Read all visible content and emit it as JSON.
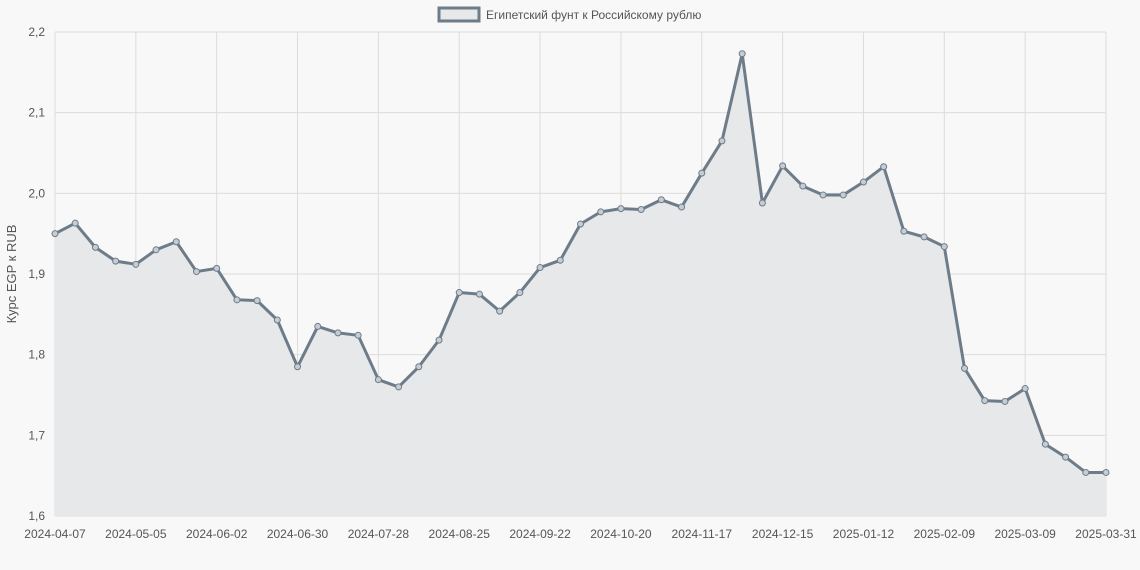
{
  "chart_data": {
    "type": "line",
    "area_fill": true,
    "legend": {
      "position": "top-center"
    },
    "series": [
      {
        "name": "Египетский фунт к Российскому рублю",
        "values": [
          1.95,
          1.963,
          1.933,
          1.916,
          1.912,
          1.93,
          1.94,
          1.903,
          1.907,
          1.868,
          1.867,
          1.843,
          1.785,
          1.835,
          1.827,
          1.824,
          1.769,
          1.76,
          1.785,
          1.818,
          1.877,
          1.875,
          1.854,
          1.877,
          1.908,
          1.917,
          1.962,
          1.977,
          1.981,
          1.98,
          1.992,
          1.983,
          2.025,
          2.065,
          2.173,
          1.988,
          2.034,
          2.009,
          1.998,
          1.998,
          2.014,
          2.033,
          1.953,
          1.946,
          1.934,
          1.783,
          1.743,
          1.742,
          1.758,
          1.689,
          1.673,
          1.654,
          1.654
        ]
      }
    ],
    "x_tick_labels": [
      "2024-04-07",
      "2024-05-05",
      "2024-06-02",
      "2024-06-30",
      "2024-07-28",
      "2024-08-25",
      "2024-09-22",
      "2024-10-20",
      "2024-11-17",
      "2024-12-15",
      "2025-01-12",
      "2025-02-09",
      "2025-03-09",
      "2025-03-31"
    ],
    "ylabel": "Курс EGP к RUB",
    "xlabel": "",
    "ylim": [
      1.6,
      2.2
    ],
    "y_ticks": [
      "1,6",
      "1,7",
      "1,8",
      "1,9",
      "2,0",
      "2,1",
      "2,2"
    ],
    "grid": true,
    "colors": {
      "line": "#6e7c89",
      "fill": "#e6e8e9",
      "point": "#c5ccd3"
    }
  }
}
